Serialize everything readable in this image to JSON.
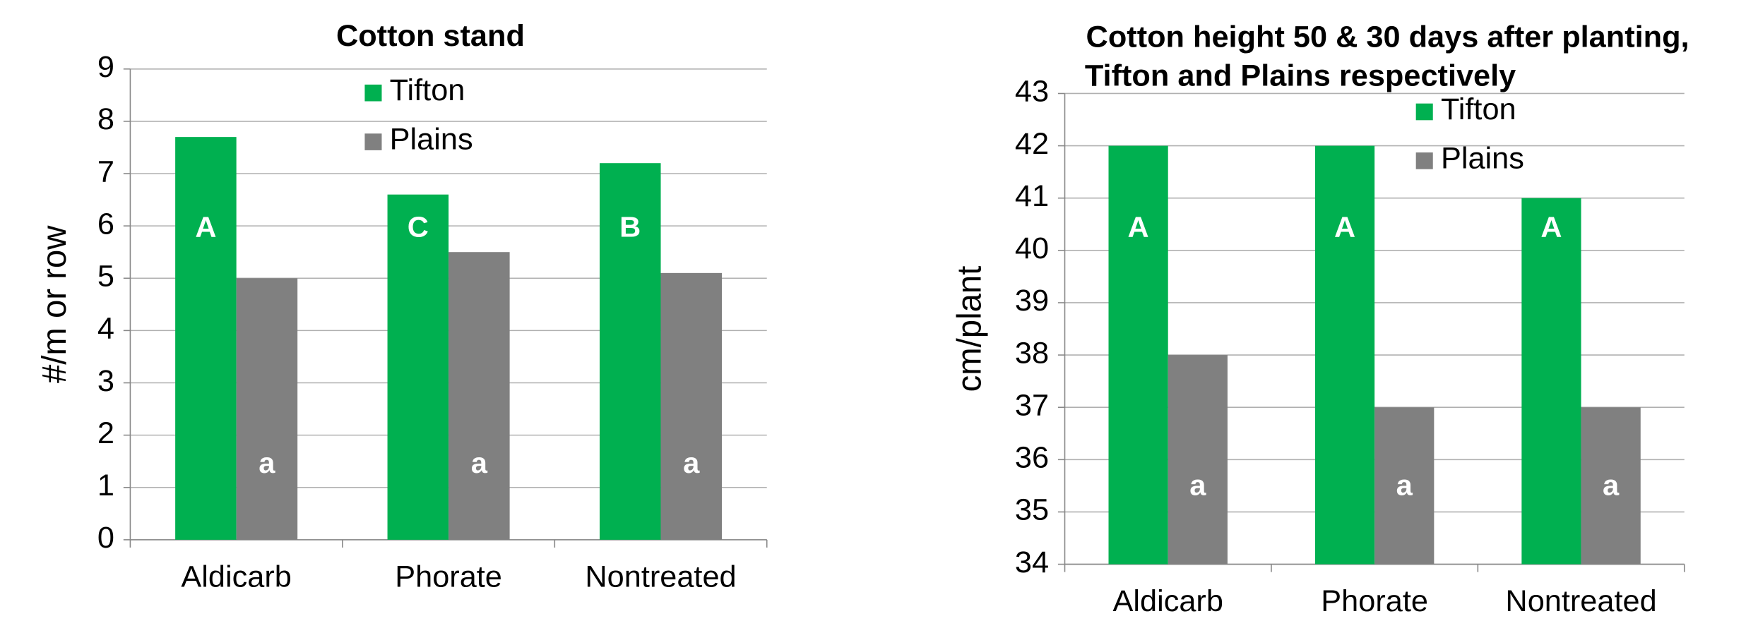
{
  "chart_data": [
    {
      "type": "bar",
      "title": [
        "Cotton stand"
      ],
      "ylabel": "#/m or row",
      "categories": [
        "Aldicarb",
        "Phorate",
        "Nontreated"
      ],
      "series": [
        {
          "name": "Tifton",
          "color": "#00b050",
          "values": [
            7.7,
            6.6,
            7.2
          ],
          "annotations": [
            "A",
            "C",
            "B"
          ]
        },
        {
          "name": "Plains",
          "color": "#808080",
          "values": [
            5,
            5.5,
            5.1
          ],
          "annotations": [
            "a",
            "a",
            "a"
          ]
        }
      ],
      "ylim": [
        0,
        9
      ],
      "yticks": [
        0,
        1,
        2,
        3,
        4,
        5,
        6,
        7,
        8,
        9
      ],
      "grid": true
    },
    {
      "type": "bar",
      "title": [
        "Cotton height 50 & 30 days after planting,",
        "Tifton and Plains respectively"
      ],
      "ylabel": "cm/plant",
      "categories": [
        "Aldicarb",
        "Phorate",
        "Nontreated"
      ],
      "series": [
        {
          "name": "Tifton",
          "color": "#00b050",
          "values": [
            42,
            42,
            41
          ],
          "annotations": [
            "A",
            "A",
            "A"
          ]
        },
        {
          "name": "Plains",
          "color": "#808080",
          "values": [
            38,
            37,
            37
          ],
          "annotations": [
            "a",
            "a",
            "a"
          ]
        }
      ],
      "ylim": [
        34,
        43
      ],
      "yticks": [
        34,
        35,
        36,
        37,
        38,
        39,
        40,
        41,
        42,
        43
      ],
      "grid": true
    }
  ]
}
